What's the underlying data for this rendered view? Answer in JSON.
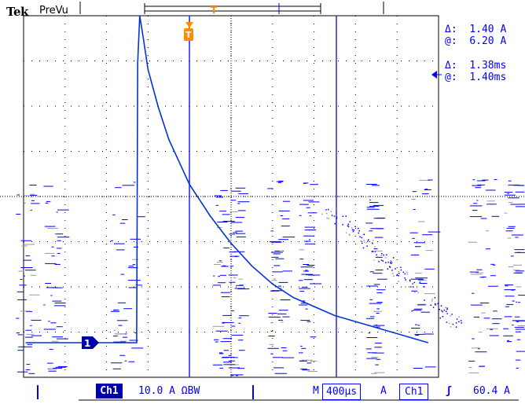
{
  "header": {
    "brand": "Tek",
    "mode": "PreVu"
  },
  "trigger_marker": "T",
  "channel_marker": "1",
  "readouts": {
    "current_delta_label": "Δ:",
    "current_delta_value": "1.40 A",
    "current_at_label": "@:",
    "current_at_value": "6.20 A",
    "time_delta_label": "Δ:",
    "time_delta_value": "1.38ms",
    "time_at_label": "@:",
    "time_at_value": "1.40ms"
  },
  "status_bar": {
    "channel": "Ch1",
    "scale": "10.0 A ΩBW",
    "timebase_label": "M",
    "timebase_value": "400µs",
    "trigger_label": "A",
    "trigger_source": "Ch1",
    "trigger_slope": "ʃ",
    "trigger_level": "60.4 A"
  },
  "colors": {
    "trace": "#0033dd",
    "grid": "#000000",
    "cursor": "#2222ff",
    "trigger": "#ff8c00"
  },
  "chart_data": {
    "type": "line",
    "x_unit": "s",
    "y_unit": "A",
    "x": [
      2e-05,
      0.0004,
      0.0008,
      0.00109,
      0.0011,
      0.00112,
      0.00115,
      0.0012,
      0.0013,
      0.0014,
      0.0016,
      0.0018,
      0.002,
      0.0022,
      0.0024,
      0.0026,
      0.0028,
      0.003,
      0.0033,
      0.0036,
      0.0039
    ],
    "y": [
      0.0,
      0.0,
      0.0,
      0.0,
      62.0,
      75.0,
      68.0,
      60.4,
      52.0,
      45.0,
      35.0,
      28.0,
      22.0,
      17.0,
      13.0,
      10.0,
      8.0,
      6.0,
      4.0,
      2.0,
      0.0
    ]
  }
}
